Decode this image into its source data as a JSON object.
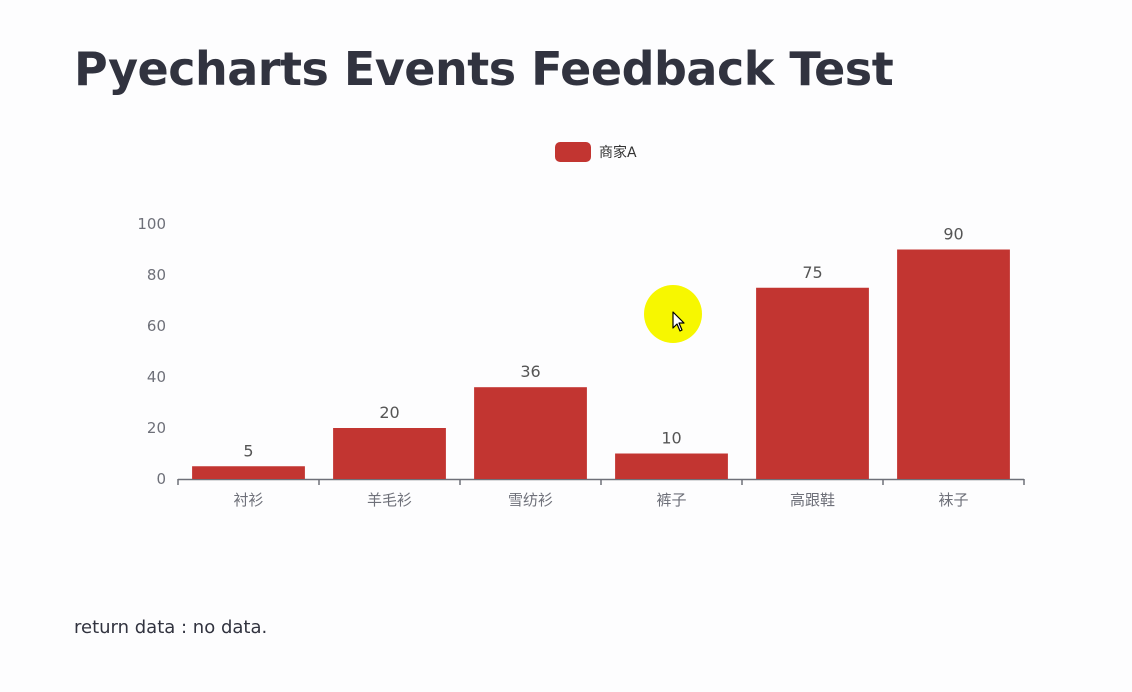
{
  "page": {
    "title": "Pyecharts Events Feedback Test",
    "return_text": "return data : no data."
  },
  "chart_data": {
    "type": "bar",
    "categories": [
      "衬衫",
      "羊毛衫",
      "雪纺衫",
      "裤子",
      "高跟鞋",
      "袜子"
    ],
    "series": [
      {
        "name": "商家A",
        "values": [
          5,
          20,
          36,
          10,
          75,
          90
        ],
        "color": "#c23531"
      }
    ],
    "ylim": [
      0,
      100
    ],
    "yticks": [
      0,
      20,
      40,
      60,
      80,
      100
    ],
    "legend_position": "top-center",
    "show_value_labels": true,
    "grid": false
  },
  "cursor": {
    "highlight_color": "#f7f700"
  }
}
